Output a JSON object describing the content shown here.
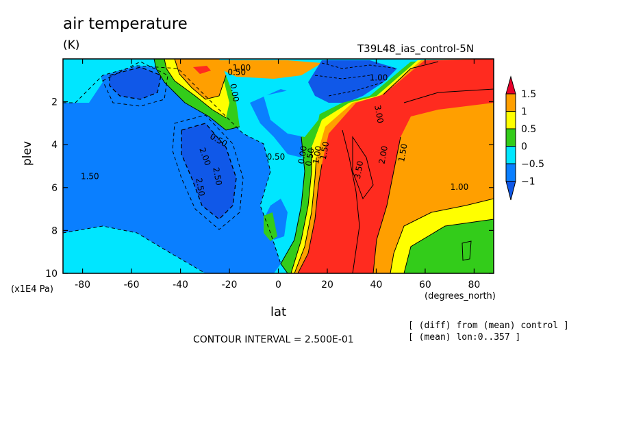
{
  "chart_data": {
    "type": "heatmap",
    "title": "air temperature",
    "units": "(K)",
    "run_label": "T39L48_ias_control-5N",
    "xlabel": "lat",
    "x_unit": "(degrees_north)",
    "ylabel": "plev",
    "y_unit": "(x1E4 Pa)",
    "xlim": [
      -88,
      88
    ],
    "ylim": [
      0,
      10
    ],
    "y_inverted": true,
    "x_ticks": [
      "-80",
      "-60",
      "-40",
      "-20",
      "0",
      "20",
      "40",
      "60",
      "80"
    ],
    "x_tick_values": [
      -80,
      -60,
      -40,
      -20,
      0,
      20,
      40,
      60,
      80
    ],
    "y_ticks": [
      "2",
      "4",
      "6",
      "8",
      "10"
    ],
    "y_tick_values": [
      2,
      4,
      6,
      8,
      10
    ],
    "colorbar": {
      "labels": [
        "1.5",
        "1",
        "0.5",
        "0",
        "−0.5",
        "−1"
      ],
      "levels": [
        1.5,
        1,
        0.5,
        0,
        -0.5,
        -1
      ],
      "colors": [
        "#ff2b1f",
        "#ff9f00",
        "#ffff00",
        "#33cc1a",
        "#00e6ff",
        "#0a7fff"
      ],
      "extend_colors": {
        "high": "#e8002b",
        "low": "#1058e8"
      }
    },
    "contour_labels": [
      "1.50",
      "1.00",
      "0.50",
      "0.00",
      "0.50",
      "0.50",
      "2.00",
      "2.50",
      "2.50",
      "3.50",
      "3.00",
      "2.00",
      "1.50",
      "1.00",
      "0.00",
      "0.50",
      "1.00",
      "1.50",
      "1.00"
    ],
    "contour_interval_text": "CONTOUR INTERVAL = 2.500E-01",
    "annotations": [
      "[ (diff) from (mean) control ]",
      "[ (mean) lon:0..357 ]"
    ]
  }
}
